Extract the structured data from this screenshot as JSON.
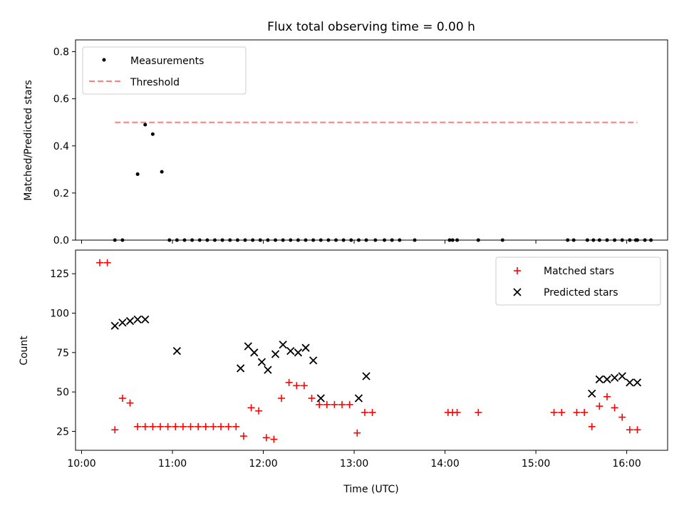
{
  "title": "Flux total observing time = 0.00 h",
  "colors": {
    "measurements": "#000000",
    "threshold": "#ff7f7f",
    "matched": "#ff0000",
    "predicted": "#000000"
  },
  "chart_data": [
    {
      "type": "scatter",
      "ylabel": "Matched/Predicted stars",
      "ylim": [
        0,
        0.85
      ],
      "yticks": [
        "0.0",
        "0.2",
        "0.4",
        "0.6",
        "0.8"
      ],
      "legend": {
        "placement": "top-left",
        "entries": [
          "Measurements",
          "Threshold"
        ]
      },
      "threshold": {
        "value": 0.5,
        "x_start": "10:22",
        "x_end": "16:07"
      },
      "series": [
        {
          "name": "Measurements",
          "x": [
            "10:22",
            "10:27",
            "10:37",
            "10:42",
            "10:47",
            "10:53",
            "10:58",
            "11:03",
            "11:08",
            "11:13",
            "11:18",
            "11:23",
            "11:28",
            "11:33",
            "11:38",
            "11:43",
            "11:48",
            "11:53",
            "11:58",
            "12:03",
            "12:08",
            "12:13",
            "12:18",
            "12:23",
            "12:28",
            "12:33",
            "12:38",
            "12:43",
            "12:48",
            "12:53",
            "12:58",
            "13:03",
            "13:08",
            "13:14",
            "13:20",
            "13:25",
            "13:30",
            "13:40",
            "14:03",
            "14:05",
            "14:08",
            "14:22",
            "14:38",
            "15:21",
            "15:25",
            "15:34",
            "15:38",
            "15:42",
            "15:47",
            "15:52",
            "15:57",
            "16:02",
            "16:06",
            "16:07",
            "16:12",
            "16:16"
          ],
          "values": [
            0,
            0,
            0.28,
            0.49,
            0.45,
            0.29,
            0,
            0,
            0,
            0,
            0,
            0,
            0,
            0,
            0,
            0,
            0,
            0,
            0,
            0,
            0,
            0,
            0,
            0,
            0,
            0,
            0,
            0,
            0,
            0,
            0,
            0,
            0,
            0,
            0,
            0,
            0,
            0,
            0,
            0,
            0,
            0,
            0,
            0,
            0,
            0,
            0,
            0,
            0,
            0,
            0,
            0,
            0,
            0,
            0,
            0
          ]
        }
      ]
    },
    {
      "type": "scatter",
      "xlabel": "Time (UTC)",
      "ylabel": "Count",
      "ylim": [
        13,
        140
      ],
      "yticks": [
        "25",
        "50",
        "75",
        "100",
        "125"
      ],
      "xticks": [
        "10:00",
        "11:00",
        "12:00",
        "13:00",
        "14:00",
        "15:00",
        "16:00"
      ],
      "xlim": [
        "09:56",
        "16:27"
      ],
      "legend": {
        "placement": "top-right",
        "entries": [
          "Matched stars",
          "Predicted stars"
        ]
      },
      "series": [
        {
          "name": "Matched stars",
          "x": [
            "10:12",
            "10:17",
            "10:22",
            "10:27",
            "10:32",
            "10:37",
            "10:42",
            "10:47",
            "10:52",
            "10:57",
            "11:02",
            "11:07",
            "11:12",
            "11:17",
            "11:22",
            "11:27",
            "11:32",
            "11:37",
            "11:42",
            "11:47",
            "11:52",
            "11:57",
            "12:02",
            "12:07",
            "12:12",
            "12:17",
            "12:22",
            "12:27",
            "12:32",
            "12:37",
            "12:42",
            "12:47",
            "12:52",
            "12:57",
            "13:02",
            "13:07",
            "13:12",
            "14:02",
            "14:05",
            "14:08",
            "14:22",
            "15:12",
            "15:17",
            "15:27",
            "15:32",
            "15:37",
            "15:42",
            "15:47",
            "15:52",
            "15:57",
            "16:02",
            "16:07"
          ],
          "values": [
            132,
            132,
            26,
            46,
            43,
            28,
            28,
            28,
            28,
            28,
            28,
            28,
            28,
            28,
            28,
            28,
            28,
            28,
            28,
            22,
            40,
            38,
            21,
            20,
            46,
            56,
            54,
            54,
            46,
            42,
            42,
            42,
            42,
            42,
            24,
            37,
            37,
            37,
            37,
            37,
            37,
            37,
            37,
            37,
            37,
            28,
            41,
            47,
            40,
            34,
            26,
            26
          ]
        },
        {
          "name": "Predicted stars",
          "x": [
            "10:22",
            "10:27",
            "10:32",
            "10:37",
            "10:42",
            "11:03",
            "11:45",
            "11:50",
            "11:54",
            "11:59",
            "12:03",
            "12:08",
            "12:13",
            "12:18",
            "12:23",
            "12:28",
            "12:33",
            "12:38",
            "13:03",
            "13:08",
            "15:37",
            "15:42",
            "15:47",
            "15:52",
            "15:57",
            "16:02",
            "16:07"
          ],
          "values": [
            92,
            94,
            95,
            96,
            96,
            76,
            65,
            79,
            75,
            69,
            64,
            74,
            80,
            76,
            75,
            78,
            70,
            46,
            46,
            60,
            49,
            58,
            58,
            59,
            60,
            56,
            56
          ]
        }
      ]
    }
  ]
}
